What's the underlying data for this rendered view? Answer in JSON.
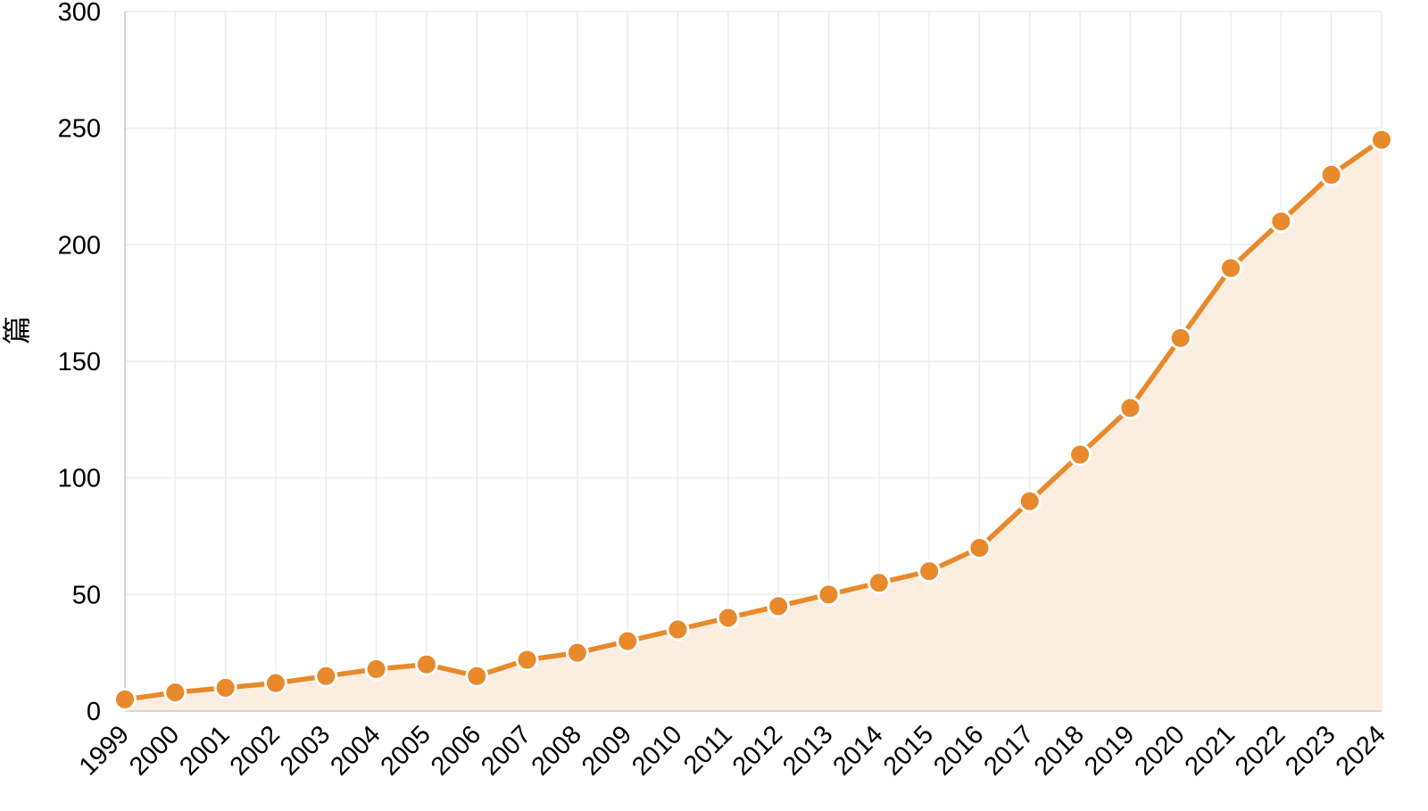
{
  "chart_data": {
    "type": "area",
    "title": "",
    "xlabel": "",
    "ylabel": "篇",
    "x": [
      "1999",
      "2000",
      "2001",
      "2002",
      "2003",
      "2004",
      "2005",
      "2006",
      "2007",
      "2008",
      "2009",
      "2010",
      "2011",
      "2012",
      "2013",
      "2014",
      "2015",
      "2016",
      "2017",
      "2018",
      "2019",
      "2020",
      "2021",
      "2022",
      "2023",
      "2024"
    ],
    "series": [
      {
        "values": [
          5,
          8,
          10,
          12,
          15,
          18,
          20,
          15,
          22,
          25,
          30,
          35,
          40,
          45,
          50,
          55,
          60,
          70,
          90,
          110,
          130,
          160,
          190,
          210,
          230,
          245
        ]
      }
    ],
    "ylim": [
      0,
      300
    ],
    "yticks": [
      0,
      50,
      100,
      150,
      200,
      250,
      300
    ],
    "grid": true,
    "legend": "none",
    "colors": {
      "line": "#e8892b",
      "area": "#fbeee1",
      "grid": "#ececec"
    }
  }
}
